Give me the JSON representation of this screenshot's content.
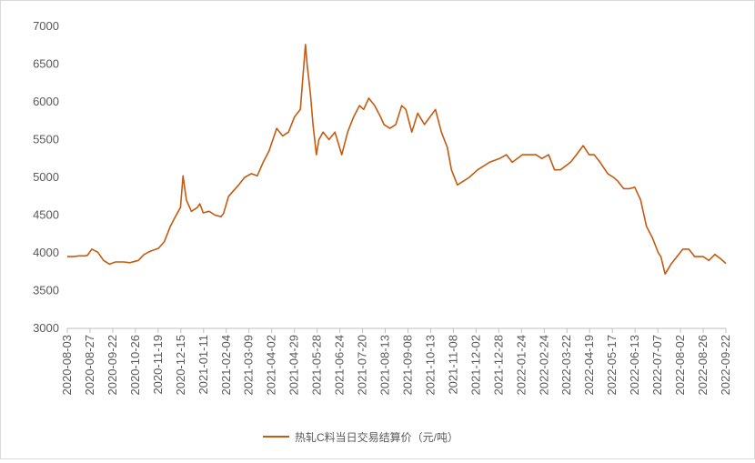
{
  "chart_data": {
    "type": "line",
    "title": "",
    "xlabel": "",
    "ylabel": "",
    "ylim": [
      3000,
      7000
    ],
    "y_ticks": [
      3000,
      3500,
      4000,
      4500,
      5000,
      5500,
      6000,
      6500,
      7000
    ],
    "x_range": [
      "2020-08-03",
      "2022-09-22"
    ],
    "x_tick_labels": [
      "2020-08-03",
      "2020-08-27",
      "2020-09-22",
      "2020-10-26",
      "2020-11-19",
      "2020-12-15",
      "2021-01-11",
      "2021-02-04",
      "2021-03-09",
      "2021-04-02",
      "2021-04-29",
      "2021-05-28",
      "2021-06-24",
      "2021-07-20",
      "2021-08-13",
      "2021-09-08",
      "2021-10-13",
      "2021-11-08",
      "2021-12-02",
      "2021-12-28",
      "2022-01-24",
      "2022-02-24",
      "2022-03-22",
      "2022-04-19",
      "2022-05-17",
      "2022-06-13",
      "2022-07-07",
      "2022-08-02",
      "2022-08-26",
      "2022-09-22"
    ],
    "grid": false,
    "legend_position": "bottom",
    "colors": {
      "series": "#C55A11",
      "axis": "#bfbfbf",
      "text": "#595959"
    },
    "series": [
      {
        "name": "热轧C料当日交易结算价（元/吨）",
        "points": [
          [
            "2020-08-03",
            3950
          ],
          [
            "2020-08-10",
            3950
          ],
          [
            "2020-08-17",
            3960
          ],
          [
            "2020-08-24",
            3960
          ],
          [
            "2020-08-27",
            3970
          ],
          [
            "2020-09-01",
            4050
          ],
          [
            "2020-09-08",
            4010
          ],
          [
            "2020-09-15",
            3900
          ],
          [
            "2020-09-22",
            3850
          ],
          [
            "2020-09-29",
            3880
          ],
          [
            "2020-10-09",
            3880
          ],
          [
            "2020-10-16",
            3870
          ],
          [
            "2020-10-26",
            3900
          ],
          [
            "2020-11-02",
            3980
          ],
          [
            "2020-11-09",
            4020
          ],
          [
            "2020-11-19",
            4060
          ],
          [
            "2020-11-26",
            4150
          ],
          [
            "2020-12-03",
            4350
          ],
          [
            "2020-12-10",
            4500
          ],
          [
            "2020-12-15",
            4600
          ],
          [
            "2020-12-18",
            5020
          ],
          [
            "2020-12-22",
            4700
          ],
          [
            "2020-12-28",
            4550
          ],
          [
            "2021-01-04",
            4600
          ],
          [
            "2021-01-07",
            4650
          ],
          [
            "2021-01-11",
            4530
          ],
          [
            "2021-01-18",
            4550
          ],
          [
            "2021-01-25",
            4500
          ],
          [
            "2021-02-01",
            4480
          ],
          [
            "2021-02-04",
            4520
          ],
          [
            "2021-02-10",
            4750
          ],
          [
            "2021-02-22",
            4900
          ],
          [
            "2021-03-01",
            5000
          ],
          [
            "2021-03-09",
            5050
          ],
          [
            "2021-03-16",
            5020
          ],
          [
            "2021-03-23",
            5200
          ],
          [
            "2021-03-30",
            5350
          ],
          [
            "2021-04-02",
            5450
          ],
          [
            "2021-04-08",
            5650
          ],
          [
            "2021-04-15",
            5550
          ],
          [
            "2021-04-22",
            5600
          ],
          [
            "2021-04-29",
            5800
          ],
          [
            "2021-05-06",
            5900
          ],
          [
            "2021-05-12",
            6760
          ],
          [
            "2021-05-14",
            6500
          ],
          [
            "2021-05-18",
            6100
          ],
          [
            "2021-05-21",
            5700
          ],
          [
            "2021-05-25",
            5300
          ],
          [
            "2021-05-28",
            5500
          ],
          [
            "2021-06-02",
            5600
          ],
          [
            "2021-06-09",
            5500
          ],
          [
            "2021-06-16",
            5600
          ],
          [
            "2021-06-24",
            5300
          ],
          [
            "2021-07-01",
            5600
          ],
          [
            "2021-07-08",
            5800
          ],
          [
            "2021-07-15",
            5950
          ],
          [
            "2021-07-20",
            5900
          ],
          [
            "2021-07-26",
            6050
          ],
          [
            "2021-08-02",
            5950
          ],
          [
            "2021-08-09",
            5800
          ],
          [
            "2021-08-13",
            5700
          ],
          [
            "2021-08-20",
            5650
          ],
          [
            "2021-08-27",
            5700
          ],
          [
            "2021-09-03",
            5950
          ],
          [
            "2021-09-08",
            5900
          ],
          [
            "2021-09-15",
            5600
          ],
          [
            "2021-09-22",
            5850
          ],
          [
            "2021-09-30",
            5700
          ],
          [
            "2021-10-13",
            5900
          ],
          [
            "2021-10-20",
            5600
          ],
          [
            "2021-10-27",
            5400
          ],
          [
            "2021-11-01",
            5100
          ],
          [
            "2021-11-08",
            4900
          ],
          [
            "2021-11-15",
            4950
          ],
          [
            "2021-11-22",
            5000
          ],
          [
            "2021-12-02",
            5100
          ],
          [
            "2021-12-09",
            5150
          ],
          [
            "2021-12-16",
            5200
          ],
          [
            "2021-12-28",
            5250
          ],
          [
            "2022-01-05",
            5300
          ],
          [
            "2022-01-12",
            5200
          ],
          [
            "2022-01-24",
            5300
          ],
          [
            "2022-02-09",
            5300
          ],
          [
            "2022-02-16",
            5250
          ],
          [
            "2022-02-24",
            5300
          ],
          [
            "2022-03-03",
            5100
          ],
          [
            "2022-03-10",
            5100
          ],
          [
            "2022-03-22",
            5200
          ],
          [
            "2022-03-29",
            5300
          ],
          [
            "2022-04-06",
            5420
          ],
          [
            "2022-04-13",
            5300
          ],
          [
            "2022-04-19",
            5300
          ],
          [
            "2022-04-26",
            5200
          ],
          [
            "2022-05-05",
            5050
          ],
          [
            "2022-05-12",
            5000
          ],
          [
            "2022-05-17",
            4950
          ],
          [
            "2022-05-24",
            4850
          ],
          [
            "2022-05-31",
            4850
          ],
          [
            "2022-06-06",
            4870
          ],
          [
            "2022-06-13",
            4700
          ],
          [
            "2022-06-20",
            4350
          ],
          [
            "2022-06-27",
            4200
          ],
          [
            "2022-07-04",
            4000
          ],
          [
            "2022-07-07",
            3950
          ],
          [
            "2022-07-12",
            3720
          ],
          [
            "2022-07-19",
            3850
          ],
          [
            "2022-07-26",
            3950
          ],
          [
            "2022-08-02",
            4050
          ],
          [
            "2022-08-09",
            4050
          ],
          [
            "2022-08-16",
            3950
          ],
          [
            "2022-08-22",
            3950
          ],
          [
            "2022-08-26",
            3950
          ],
          [
            "2022-09-02",
            3900
          ],
          [
            "2022-09-09",
            3980
          ],
          [
            "2022-09-16",
            3920
          ],
          [
            "2022-09-22",
            3860
          ]
        ]
      }
    ]
  }
}
